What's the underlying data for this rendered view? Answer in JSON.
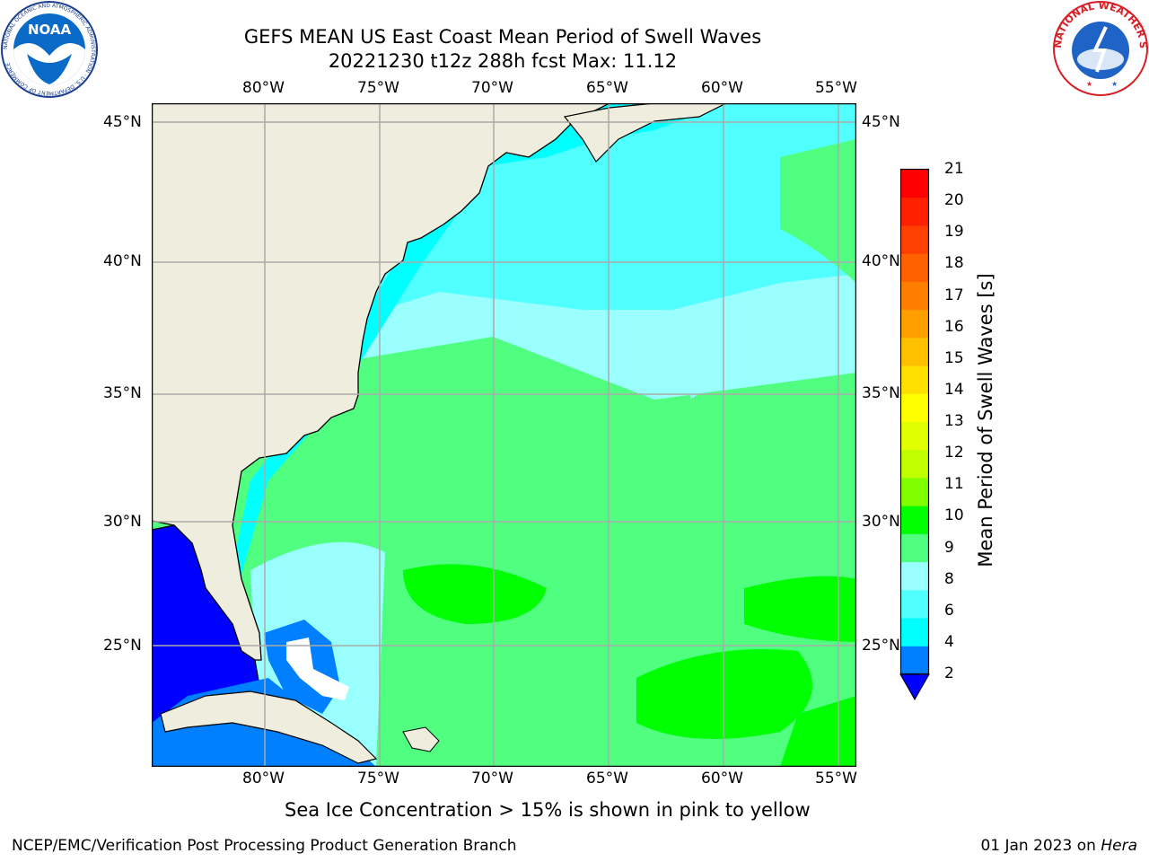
{
  "header": {
    "title_line1": "GEFS MEAN US East Coast Mean Period of Swell Waves",
    "title_line2": "20221230 t12z 288h fcst   Max: 11.12"
  },
  "logos": {
    "noaa_text": "NOAA",
    "noaa_ring_text": "NATIONAL OCEANIC AND ATMOSPHERIC ADMINISTRATION · U.S. DEPARTMENT OF COMMERCE",
    "nws_ring_text": "NATIONAL WEATHER SERVICE"
  },
  "map": {
    "lon_labels": [
      "80°W",
      "75°W",
      "70°W",
      "65°W",
      "60°W",
      "55°W"
    ],
    "lat_labels": [
      "45°N",
      "40°N",
      "35°N",
      "30°N",
      "25°N"
    ],
    "colors": {
      "land": "#eeedde",
      "gulf": "#0000ff",
      "gridline": "#aaaaaa"
    }
  },
  "colorbar": {
    "label": "Mean Period of Swell Waves [s]",
    "ticks": [
      "21",
      "20",
      "19",
      "18",
      "17",
      "16",
      "15",
      "14",
      "13",
      "12",
      "11",
      "10",
      "9",
      "8",
      "6",
      "4",
      "2"
    ],
    "colors": [
      "#ff0000",
      "#ff2000",
      "#ff4000",
      "#ff6000",
      "#ff8000",
      "#ffa000",
      "#ffc000",
      "#ffe000",
      "#ffff00",
      "#e0ff00",
      "#c0ff00",
      "#80ff00",
      "#00ff00",
      "#50ff80",
      "#99ffff",
      "#50ffff",
      "#00ffff",
      "#0080ff"
    ],
    "extend_color": "#0000ff"
  },
  "footer": {
    "caption": "Sea Ice Concentration > 15% is shown in pink to yellow",
    "left": "NCEP/EMC/Verification Post Processing Product Generation Branch",
    "right_date": "01 Jan 2023 on ",
    "right_machine": "Hera"
  }
}
